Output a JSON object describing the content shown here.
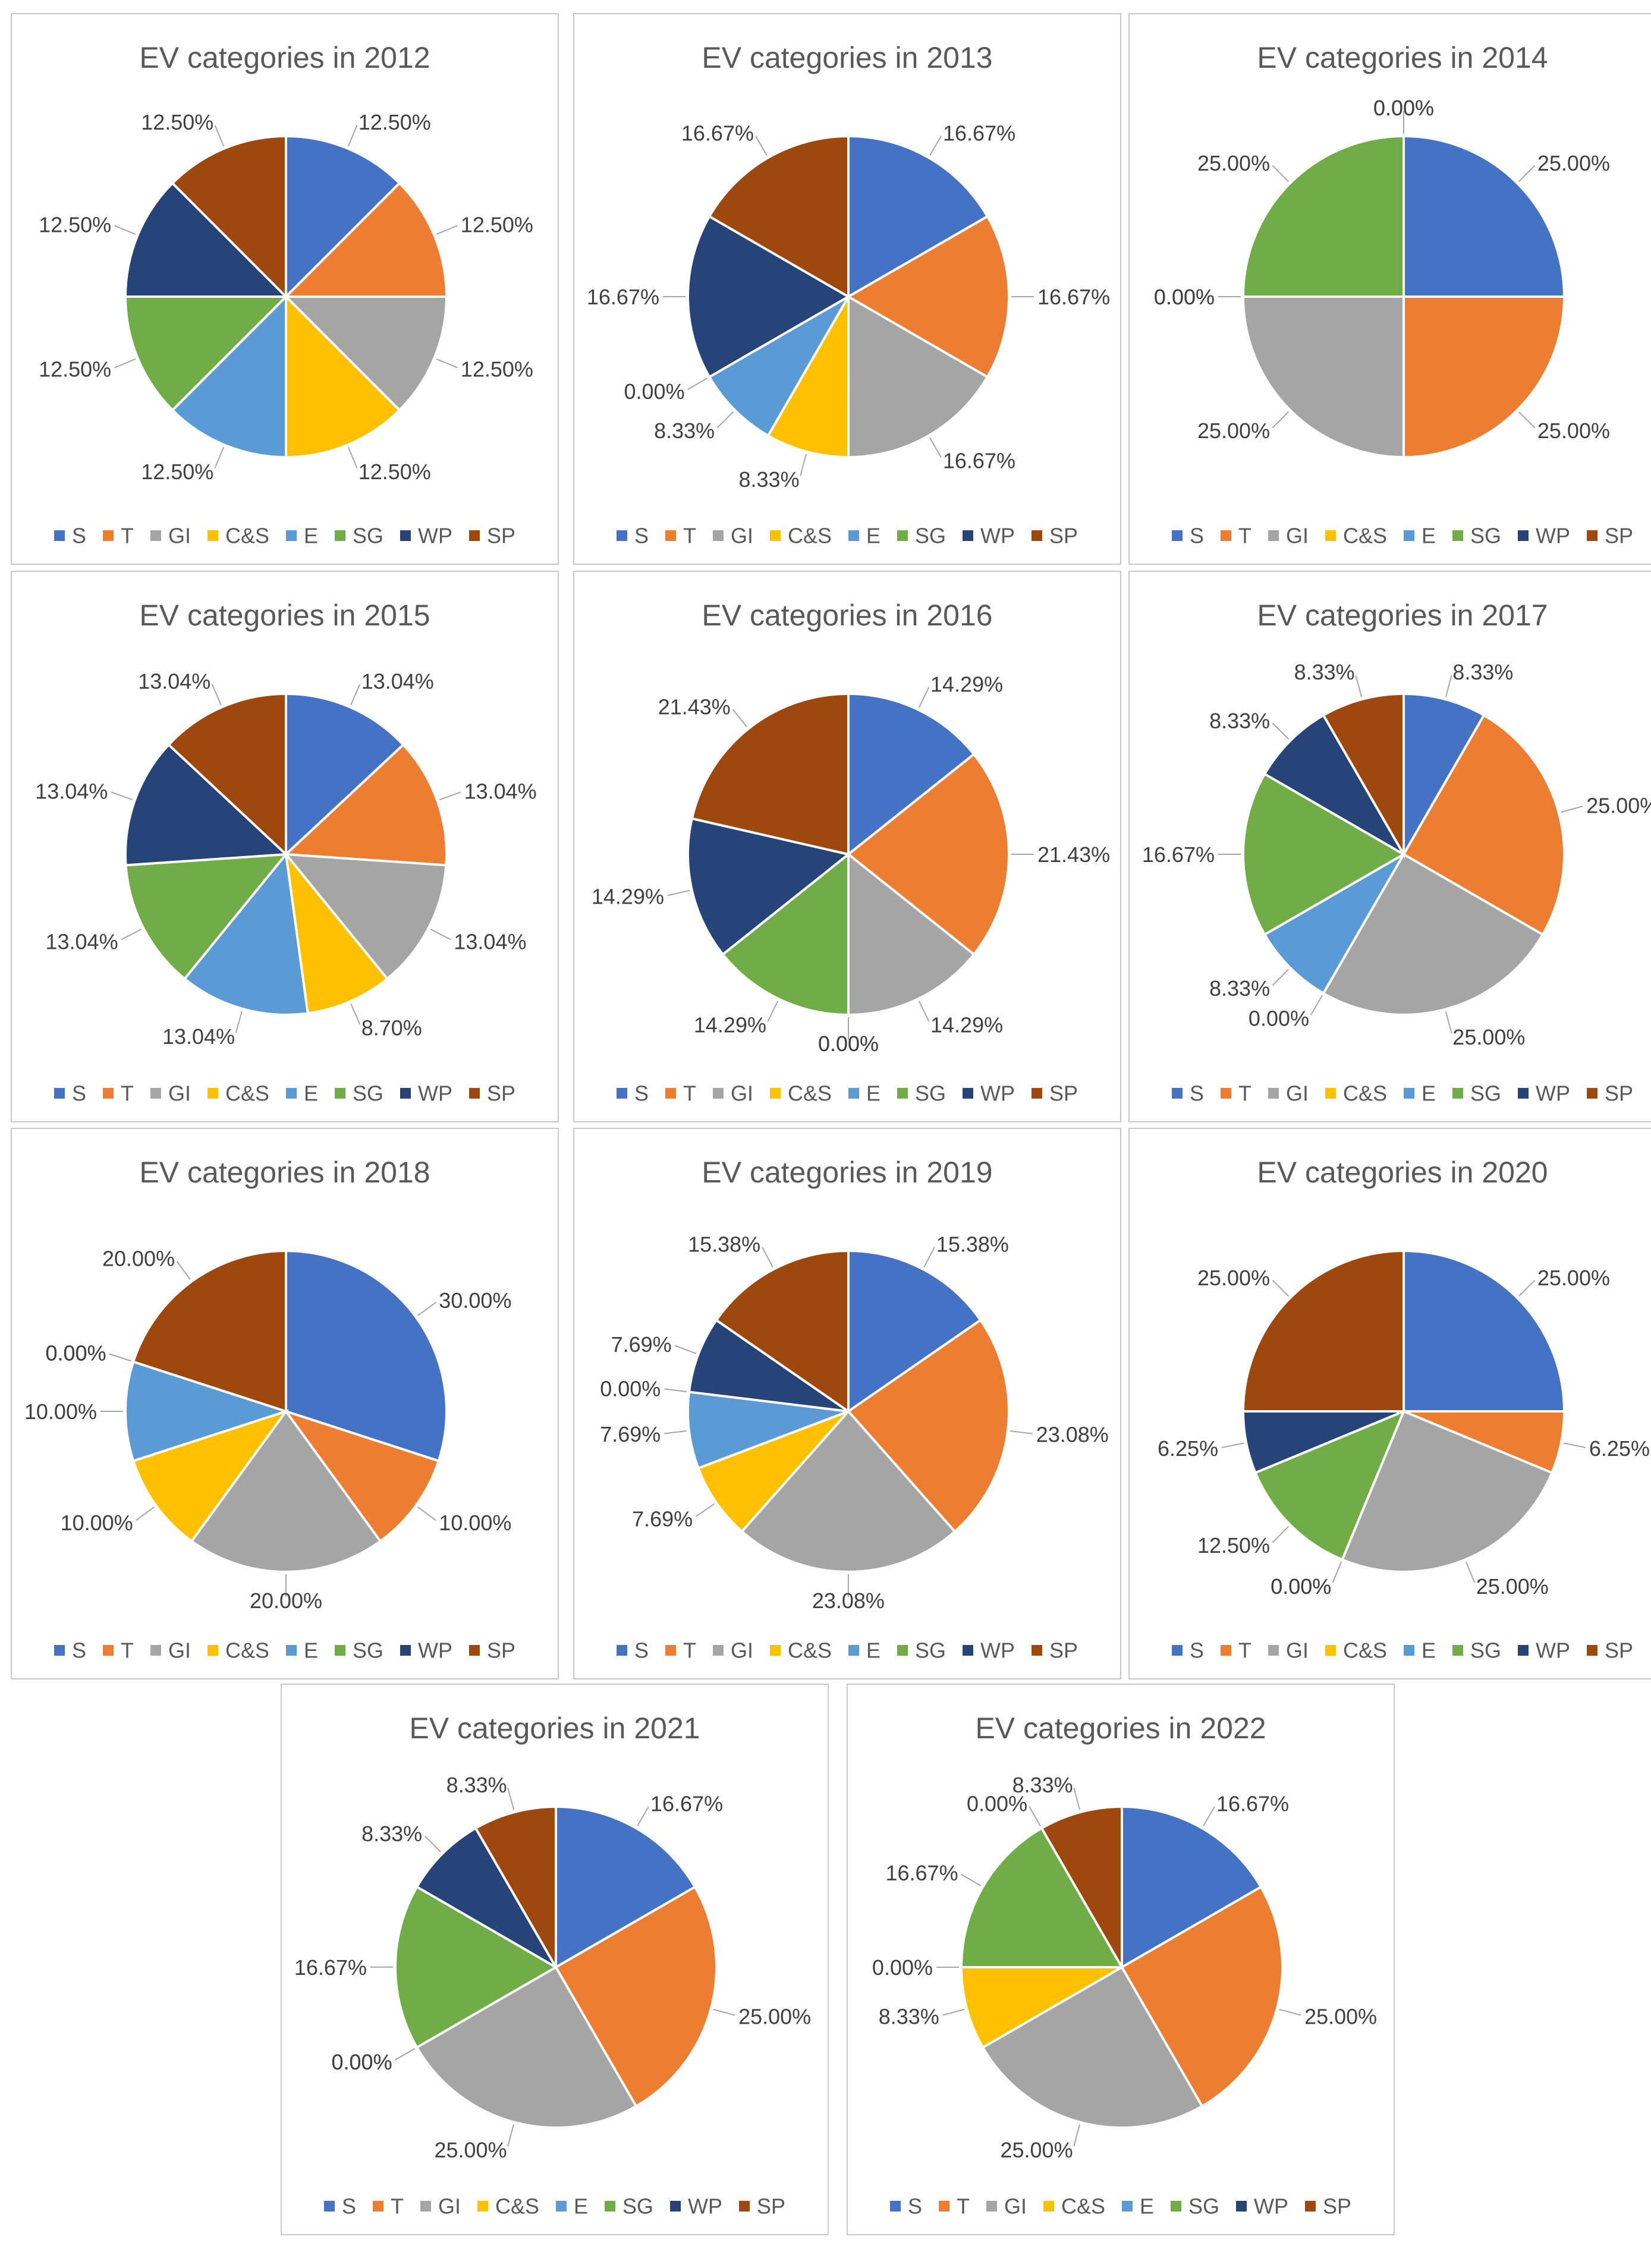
{
  "legend": [
    "S",
    "T",
    "GI",
    "C&S",
    "E",
    "SG",
    "WP",
    "SP"
  ],
  "colors": [
    "#4472C4",
    "#ED7D31",
    "#A5A5A5",
    "#FFC000",
    "#5B9BD5",
    "#70AD47",
    "#264478",
    "#9E480E"
  ],
  "chart_data": [
    {
      "type": "pie",
      "title": "EV categories in 2012",
      "categories": [
        "S",
        "T",
        "GI",
        "C&S",
        "E",
        "SG",
        "WP",
        "SP"
      ],
      "values": [
        12.5,
        12.5,
        12.5,
        12.5,
        12.5,
        12.5,
        12.5,
        12.5
      ],
      "labels": [
        "12.50%",
        "12.50%",
        "12.50%",
        "12.50%",
        "12.50%",
        "12.50%",
        "12.50%",
        "12.50%"
      ]
    },
    {
      "type": "pie",
      "title": "EV categories in 2013",
      "categories": [
        "S",
        "T",
        "GI",
        "C&S",
        "E",
        "SG",
        "WP",
        "SP"
      ],
      "values": [
        16.67,
        16.67,
        16.67,
        8.33,
        8.33,
        0,
        16.67,
        16.67
      ],
      "labels": [
        "16.67%",
        "16.67%",
        "16.67%",
        "8.33%",
        "8.33%",
        "0.00%",
        "16.67%",
        "16.67%"
      ]
    },
    {
      "type": "pie",
      "title": "EV categories in 2014",
      "categories": [
        "S",
        "T",
        "GI",
        "C&S",
        "E",
        "SG",
        "WP",
        "SP"
      ],
      "values": [
        25,
        25,
        25,
        0,
        0,
        25,
        0,
        0
      ],
      "labels": [
        "25.00%",
        "25.00%",
        "25.00%",
        "0.00%",
        "0.00%",
        "25.00%",
        "0.00%",
        "0.00%"
      ]
    },
    {
      "type": "pie",
      "title": "EV categories in 2015",
      "categories": [
        "S",
        "T",
        "GI",
        "C&S",
        "E",
        "SG",
        "WP",
        "SP"
      ],
      "values": [
        13.04,
        13.04,
        13.04,
        8.7,
        13.04,
        13.04,
        13.04,
        13.04
      ],
      "labels": [
        "13.04%",
        "13.04%",
        "13.04%",
        "8.70%",
        "13.04%",
        "13.04%",
        "13.04%",
        "13.04%"
      ]
    },
    {
      "type": "pie",
      "title": "EV categories in 2016",
      "categories": [
        "S",
        "T",
        "GI",
        "C&S",
        "E",
        "SG",
        "WP",
        "SP"
      ],
      "values": [
        14.29,
        21.43,
        14.29,
        0,
        0,
        14.29,
        14.29,
        21.43
      ],
      "labels": [
        "14.29%",
        "21.43%",
        "14.29%",
        "0.00%",
        "0.00%",
        "14.29%",
        "14.29%",
        "21.43%"
      ]
    },
    {
      "type": "pie",
      "title": "EV categories in 2017",
      "categories": [
        "S",
        "T",
        "GI",
        "C&S",
        "E",
        "SG",
        "WP",
        "SP"
      ],
      "values": [
        8.33,
        25,
        25,
        0,
        8.33,
        16.67,
        8.33,
        8.33
      ],
      "labels": [
        "8.33%",
        "25.00%",
        "25.00%",
        "0.00%",
        "8.33%",
        "16.67%",
        "8.33%",
        "8.33%"
      ]
    },
    {
      "type": "pie",
      "title": "EV categories in 2018",
      "categories": [
        "S",
        "T",
        "GI",
        "C&S",
        "E",
        "SG",
        "WP",
        "SP"
      ],
      "values": [
        30,
        10,
        20,
        10,
        10,
        0,
        0,
        20
      ],
      "labels": [
        "30.00%",
        "10.00%",
        "20.00%",
        "10.00%",
        "10.00%",
        "0.00%",
        "0.00%",
        "20.00%"
      ]
    },
    {
      "type": "pie",
      "title": "EV categories in 2019",
      "categories": [
        "S",
        "T",
        "GI",
        "C&S",
        "E",
        "SG",
        "WP",
        "SP"
      ],
      "values": [
        15.38,
        23.08,
        23.08,
        7.69,
        7.69,
        0,
        7.69,
        15.38
      ],
      "labels": [
        "15.38%",
        "23.08%",
        "23.08%",
        "7.69%",
        "7.69%",
        "0.00%",
        "7.69%",
        "15.38%"
      ]
    },
    {
      "type": "pie",
      "title": "EV categories in 2020",
      "categories": [
        "S",
        "T",
        "GI",
        "C&S",
        "E",
        "SG",
        "WP",
        "SP"
      ],
      "values": [
        25,
        6.25,
        25,
        0,
        0,
        12.5,
        6.25,
        25
      ],
      "labels": [
        "25.00%",
        "6.25%",
        "25.00%",
        "0.00%",
        "0.00%",
        "12.50%",
        "6.25%",
        "25.00%"
      ]
    },
    {
      "type": "pie",
      "title": "EV categories in 2021",
      "categories": [
        "S",
        "T",
        "GI",
        "C&S",
        "E",
        "SG",
        "WP",
        "SP"
      ],
      "values": [
        16.67,
        25,
        25,
        0,
        0,
        16.67,
        8.33,
        8.33
      ],
      "labels": [
        "16.67%",
        "25.00%",
        "25.00%",
        "0.00%",
        "0.00%",
        "16.67%",
        "8.33%",
        "8.33%"
      ]
    },
    {
      "type": "pie",
      "title": "EV categories in 2022",
      "categories": [
        "S",
        "T",
        "GI",
        "C&S",
        "E",
        "SG",
        "WP",
        "SP"
      ],
      "values": [
        16.67,
        25,
        25,
        8.33,
        0,
        16.67,
        0,
        8.33
      ],
      "labels": [
        "16.67%",
        "25.00%",
        "25.00%",
        "8.33%",
        "0.00%",
        "16.67%",
        "0.00%",
        "8.33%"
      ]
    }
  ]
}
